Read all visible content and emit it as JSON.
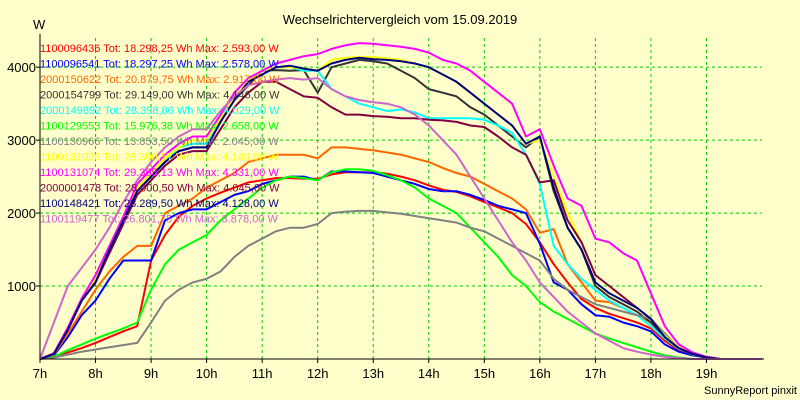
{
  "chart_data": {
    "type": "line",
    "title": "Wechselrichtervergleich vom 15.09.2019",
    "ylabel": "W",
    "xlabel": "",
    "footer": "SunnyReport pinxit",
    "ylim": [
      0,
      4400
    ],
    "xlim": [
      7,
      20
    ],
    "yticks": [
      1000,
      2000,
      3000,
      4000
    ],
    "ytick_labels": [
      "1000",
      "2000",
      "3000",
      "4000"
    ],
    "xticks": [
      7,
      8,
      9,
      10,
      11,
      12,
      13,
      14,
      15,
      16,
      17,
      18,
      19
    ],
    "xtick_labels": [
      "7h",
      "8h",
      "9h",
      "10h",
      "11h",
      "12h",
      "13h",
      "14h",
      "15h",
      "16h",
      "17h",
      "18h",
      "19h"
    ],
    "grid": true,
    "legend_position": "top-left",
    "x": [
      7.0,
      7.25,
      7.5,
      7.75,
      8.0,
      8.25,
      8.5,
      8.75,
      9.0,
      9.25,
      9.5,
      9.75,
      10.0,
      10.25,
      10.5,
      10.75,
      11.0,
      11.25,
      11.5,
      11.75,
      12.0,
      12.25,
      12.5,
      12.75,
      13.0,
      13.25,
      13.5,
      13.75,
      14.0,
      14.25,
      14.5,
      14.75,
      15.0,
      15.25,
      15.5,
      15.75,
      16.0,
      16.25,
      16.5,
      16.75,
      17.0,
      17.25,
      17.5,
      17.75,
      18.0,
      18.25,
      18.5,
      18.75,
      19.0,
      19.25,
      19.5,
      19.75,
      20.0
    ],
    "series": [
      {
        "name": "1100096436",
        "legend": "1100096436 Tot: 18.298,25 Wh Max: 2.593,00 W",
        "color": "#ff0000",
        "values": [
          0,
          40,
          90,
          150,
          220,
          300,
          380,
          450,
          1350,
          1700,
          1950,
          2100,
          2200,
          2280,
          2350,
          2420,
          2450,
          2480,
          2480,
          2470,
          2470,
          2530,
          2560,
          2560,
          2560,
          2540,
          2500,
          2450,
          2380,
          2320,
          2290,
          2230,
          2150,
          2080,
          2000,
          1850,
          1600,
          1300,
          1050,
          820,
          700,
          620,
          560,
          500,
          420,
          250,
          120,
          60,
          20,
          0,
          0,
          0,
          0
        ]
      },
      {
        "name": "1100096541",
        "legend": "1100096541 Tot: 18.297,25 Wh Max: 2.578,00 W",
        "color": "#0000ff",
        "values": [
          0,
          50,
          300,
          600,
          800,
          1100,
          1350,
          1350,
          1350,
          1900,
          2000,
          2050,
          2050,
          2150,
          2250,
          2300,
          2400,
          2450,
          2500,
          2500,
          2450,
          2570,
          2570,
          2560,
          2550,
          2500,
          2450,
          2400,
          2330,
          2300,
          2300,
          2250,
          2180,
          2100,
          2050,
          2000,
          1580,
          1050,
          950,
          750,
          600,
          580,
          500,
          450,
          380,
          200,
          100,
          50,
          20,
          0,
          0,
          0,
          0
        ]
      },
      {
        "name": "2000150622",
        "legend": "2000150622 Tot: 20.879,75 Wh Max: 2.917,00 W",
        "color": "#ff6600",
        "values": [
          0,
          60,
          350,
          650,
          950,
          1200,
          1400,
          1550,
          1550,
          2000,
          2100,
          2200,
          2350,
          2450,
          2550,
          2700,
          2750,
          2800,
          2800,
          2800,
          2750,
          2900,
          2900,
          2880,
          2860,
          2830,
          2800,
          2750,
          2700,
          2620,
          2550,
          2500,
          2400,
          2300,
          2200,
          2050,
          1730,
          1780,
          1300,
          1050,
          800,
          780,
          700,
          600,
          500,
          300,
          150,
          70,
          20,
          0,
          0,
          0,
          0
        ]
      },
      {
        "name": "2000154799",
        "legend": "2000154799 Tot: 29.149,00 Wh Max: 4.146,00 W",
        "color": "#333333",
        "values": [
          0,
          70,
          400,
          800,
          1050,
          1500,
          1900,
          2300,
          2500,
          2700,
          2850,
          2900,
          2900,
          3250,
          3550,
          3750,
          3950,
          3960,
          3950,
          3960,
          3650,
          4000,
          4050,
          4100,
          4080,
          4050,
          3950,
          3850,
          3700,
          3650,
          3600,
          3450,
          3350,
          3200,
          3050,
          2900,
          3050,
          2300,
          1800,
          1500,
          1000,
          850,
          750,
          650,
          500,
          300,
          150,
          80,
          30,
          0,
          0,
          0,
          0
        ]
      },
      {
        "name": "2000149892",
        "legend": "2000149892 Tot: 28.398,86 Wh Max: 4.029,00 W",
        "color": "#00ffff",
        "values": [
          0,
          70,
          420,
          820,
          1100,
          1500,
          1900,
          2300,
          2500,
          2700,
          2900,
          2950,
          2950,
          3250,
          3550,
          3800,
          3950,
          4000,
          4000,
          3950,
          3950,
          3700,
          3600,
          3500,
          3450,
          3400,
          3420,
          3380,
          3300,
          3300,
          3300,
          3300,
          3280,
          3200,
          3100,
          2800,
          2400,
          1550,
          1300,
          1100,
          950,
          800,
          700,
          600,
          450,
          280,
          140,
          70,
          20,
          0,
          0,
          0,
          0
        ]
      },
      {
        "name": "1100129553",
        "legend": "1100129553 Tot: 15.976,38 Wh Max: 2.658,00 W",
        "color": "#00ff00",
        "values": [
          0,
          30,
          120,
          200,
          280,
          350,
          420,
          500,
          950,
          1300,
          1500,
          1600,
          1700,
          1900,
          2050,
          2200,
          2350,
          2450,
          2500,
          2480,
          2450,
          2560,
          2600,
          2600,
          2580,
          2520,
          2450,
          2350,
          2200,
          2100,
          2000,
          1800,
          1600,
          1400,
          1150,
          1000,
          780,
          650,
          550,
          450,
          350,
          280,
          220,
          160,
          100,
          50,
          20,
          0,
          0,
          0,
          0,
          0,
          0
        ]
      },
      {
        "name": "1100130966",
        "legend": "1100130966 Tot: 13.853,50 Wh Max: 2.045,00 W",
        "color": "#808080",
        "values": [
          0,
          20,
          60,
          100,
          130,
          160,
          190,
          220,
          500,
          800,
          950,
          1050,
          1100,
          1200,
          1400,
          1550,
          1650,
          1750,
          1800,
          1800,
          1850,
          2000,
          2020,
          2030,
          2030,
          2010,
          1990,
          1960,
          1930,
          1900,
          1870,
          1800,
          1750,
          1650,
          1550,
          1450,
          1350,
          1100,
          950,
          850,
          750,
          700,
          650,
          600,
          550,
          350,
          150,
          60,
          20,
          0,
          0,
          0,
          0
        ]
      },
      {
        "name": "1100131026",
        "legend": "1100131026 Tot: 28.390,57 Wh Max: 4.140,00 W",
        "color": "#ffff00",
        "values": [
          0,
          70,
          420,
          820,
          1100,
          1500,
          1900,
          2350,
          2550,
          2750,
          2900,
          3000,
          3000,
          3300,
          3600,
          3800,
          3950,
          4000,
          4000,
          3980,
          3950,
          4100,
          4130,
          4140,
          4140,
          4120,
          4100,
          4050,
          4000,
          3900,
          3800,
          3650,
          3500,
          3350,
          3200,
          2950,
          3000,
          2500,
          2000,
          1600,
          1150,
          1000,
          850,
          700,
          550,
          320,
          160,
          80,
          30,
          0,
          0,
          0,
          0
        ]
      },
      {
        "name": "1100131074",
        "legend": "1100131074 Tot: 29.365,13 Wh Max: 4.331,00 W",
        "color": "#ff00ff",
        "values": [
          0,
          80,
          430,
          830,
          1150,
          1550,
          1950,
          2400,
          2600,
          2800,
          2950,
          3050,
          3050,
          3350,
          3650,
          3850,
          3950,
          4050,
          4100,
          4150,
          4180,
          4250,
          4300,
          4330,
          4320,
          4300,
          4280,
          4250,
          4200,
          4100,
          4050,
          3950,
          3800,
          3650,
          3500,
          3050,
          3150,
          2650,
          2200,
          2100,
          1650,
          1600,
          1450,
          1350,
          900,
          450,
          200,
          90,
          30,
          0,
          0,
          0,
          0
        ]
      },
      {
        "name": "2000001478",
        "legend": "2000001478 Tot: 28.000,50 Wh Max: 4.045,00 W",
        "color": "#800040",
        "values": [
          0,
          70,
          400,
          800,
          1050,
          1450,
          1850,
          2250,
          2450,
          2650,
          2800,
          2850,
          2850,
          3150,
          3450,
          3650,
          3800,
          3800,
          3700,
          3600,
          3580,
          3450,
          3350,
          3350,
          3330,
          3320,
          3300,
          3300,
          3280,
          3270,
          3250,
          3200,
          3180,
          3050,
          2900,
          2800,
          2420,
          2450,
          1900,
          1600,
          1150,
          1000,
          850,
          700,
          550,
          300,
          150,
          70,
          20,
          0,
          0,
          0,
          0
        ]
      },
      {
        "name": "1100148421",
        "legend": "1100148421 Tot: 28.289,50 Wh Max: 4.128,00 W",
        "color": "#000080",
        "values": [
          0,
          70,
          400,
          800,
          1050,
          1500,
          1900,
          2300,
          2500,
          2700,
          2850,
          2900,
          2900,
          3250,
          3550,
          3800,
          3900,
          4000,
          4020,
          3980,
          3950,
          4050,
          4100,
          4128,
          4110,
          4100,
          4080,
          4050,
          4000,
          3900,
          3800,
          3650,
          3500,
          3350,
          3200,
          2950,
          3050,
          2350,
          1800,
          1500,
          1050,
          900,
          800,
          700,
          550,
          300,
          150,
          70,
          20,
          0,
          0,
          0,
          0
        ]
      },
      {
        "name": "1100119477",
        "legend": "1100119477 Tot: 26.801,75 Wh Max: 3.878,00 W",
        "color": "#cc66cc",
        "values": [
          0,
          500,
          1000,
          1250,
          1500,
          1800,
          2150,
          2450,
          2700,
          2900,
          3050,
          3150,
          3150,
          3400,
          3600,
          3750,
          3800,
          3830,
          3850,
          3830,
          3850,
          3700,
          3600,
          3550,
          3520,
          3500,
          3450,
          3350,
          3200,
          3000,
          2800,
          2500,
          2200,
          1900,
          1600,
          1350,
          1050,
          850,
          650,
          500,
          350,
          250,
          150,
          100,
          60,
          30,
          10,
          0,
          0,
          0,
          0,
          0,
          0
        ]
      }
    ]
  }
}
